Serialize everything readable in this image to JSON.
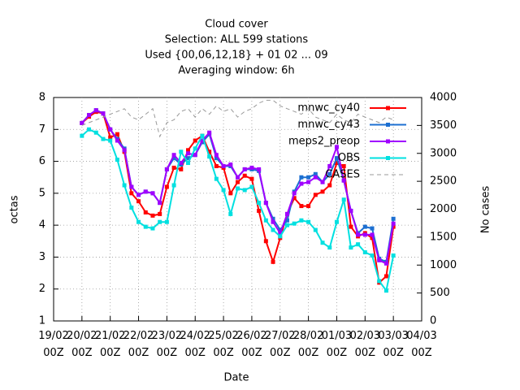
{
  "chart_data": {
    "type": "line",
    "title": [
      "Cloud cover",
      "Selection: ALL    599 stations",
      "Used {00,06,12,18} + 01 02 ... 09",
      "Averaging window:  6h"
    ],
    "xlabel": "Date",
    "ylabel": "octas",
    "y2label": "No cases",
    "xlim": [
      "19/02 00Z",
      "04/03 00Z"
    ],
    "xticks": [
      "19/02 00Z",
      "20/02 00Z",
      "21/02 00Z",
      "22/02 00Z",
      "23/02 00Z",
      "24/02 00Z",
      "25/02 00Z",
      "26/02 00Z",
      "27/02 00Z",
      "28/02 00Z",
      "01/03 00Z",
      "02/03 00Z",
      "03/03 00Z",
      "04/03 00Z"
    ],
    "ylim": [
      1,
      8
    ],
    "yticks": [
      1,
      2,
      3,
      4,
      5,
      6,
      7,
      8
    ],
    "y2lim": [
      0,
      4000
    ],
    "y2ticks": [
      0,
      500,
      1000,
      1500,
      2000,
      2500,
      3000,
      3500,
      4000
    ],
    "grid": true,
    "legend": "top-right",
    "x": [
      "20/02 00Z",
      "20/02 06Z",
      "20/02 12Z",
      "20/02 18Z",
      "21/02 00Z",
      "21/02 06Z",
      "21/02 12Z",
      "21/02 18Z",
      "22/02 00Z",
      "22/02 06Z",
      "22/02 12Z",
      "22/02 18Z",
      "23/02 00Z",
      "23/02 06Z",
      "23/02 12Z",
      "23/02 18Z",
      "24/02 00Z",
      "24/02 06Z",
      "24/02 12Z",
      "24/02 18Z",
      "25/02 00Z",
      "25/02 06Z",
      "25/02 12Z",
      "25/02 18Z",
      "26/02 00Z",
      "26/02 06Z",
      "26/02 12Z",
      "26/02 18Z",
      "27/02 00Z",
      "27/02 06Z",
      "27/02 12Z",
      "27/02 18Z",
      "28/02 00Z",
      "28/02 06Z",
      "28/02 12Z",
      "28/02 18Z",
      "01/03 00Z",
      "01/03 06Z",
      "01/03 12Z",
      "01/03 18Z",
      "02/03 00Z",
      "02/03 06Z",
      "02/03 12Z",
      "02/03 18Z",
      "03/03 00Z"
    ],
    "series": [
      {
        "name": "mnwc_cy40",
        "color": "#ff0000",
        "values": [
          7.2,
          7.4,
          7.55,
          7.5,
          6.75,
          6.85,
          6.3,
          5.0,
          4.75,
          4.4,
          4.3,
          4.35,
          5.2,
          5.8,
          5.75,
          6.35,
          6.65,
          6.8,
          6.3,
          5.85,
          5.8,
          5.0,
          5.35,
          5.55,
          5.45,
          4.45,
          3.5,
          2.85,
          3.6,
          4.35,
          4.85,
          4.6,
          4.6,
          4.95,
          5.05,
          5.25,
          5.95,
          5.85,
          3.95,
          3.65,
          3.75,
          3.6,
          2.2,
          2.4,
          3.95
        ]
      },
      {
        "name": "mnwc_cy43",
        "color": "#1c6fd1",
        "values": [
          7.2,
          7.45,
          7.6,
          7.5,
          7.0,
          6.7,
          6.4,
          5.2,
          4.95,
          5.05,
          5.0,
          4.7,
          5.75,
          6.1,
          5.9,
          6.1,
          6.2,
          6.6,
          6.85,
          6.1,
          5.85,
          5.85,
          5.5,
          5.75,
          5.75,
          5.7,
          4.7,
          4.2,
          3.85,
          4.15,
          5.05,
          5.5,
          5.5,
          5.6,
          5.35,
          5.6,
          6.1,
          5.4,
          4.45,
          3.75,
          3.95,
          3.9,
          2.95,
          2.85,
          4.2
        ]
      },
      {
        "name": "meps2_preop",
        "color": "#a000ff",
        "values": [
          7.2,
          7.45,
          7.6,
          7.5,
          7.0,
          6.65,
          6.35,
          5.2,
          4.95,
          5.05,
          5.0,
          4.7,
          5.75,
          6.2,
          5.95,
          6.25,
          6.2,
          6.65,
          6.9,
          6.2,
          5.85,
          5.9,
          5.5,
          5.75,
          5.8,
          5.75,
          4.7,
          4.1,
          3.75,
          4.35,
          5.0,
          5.3,
          5.35,
          5.5,
          5.35,
          5.85,
          6.45,
          5.4,
          4.45,
          3.7,
          3.7,
          3.7,
          2.9,
          2.8,
          4.05
        ]
      },
      {
        "name": "OBS",
        "color": "#00e0e0",
        "values": [
          6.8,
          7.0,
          6.9,
          6.7,
          6.65,
          6.05,
          5.25,
          4.55,
          4.1,
          3.95,
          3.9,
          4.1,
          4.1,
          5.25,
          6.3,
          5.95,
          6.4,
          6.8,
          6.15,
          5.45,
          5.1,
          4.35,
          5.15,
          5.1,
          5.2,
          4.7,
          4.15,
          3.85,
          3.65,
          4.0,
          4.05,
          4.15,
          4.1,
          3.85,
          3.45,
          3.3,
          4.1,
          4.8,
          3.3,
          3.4,
          3.15,
          3.05,
          2.25,
          1.95,
          3.05
        ]
      },
      {
        "name": "CASES",
        "color": "#999999",
        "axis": "y2",
        "dashed": true,
        "values": [
          3500,
          3550,
          3600,
          3650,
          3700,
          3750,
          3800,
          3650,
          3600,
          3700,
          3800,
          3300,
          3550,
          3600,
          3750,
          3800,
          3650,
          3800,
          3700,
          3850,
          3750,
          3800,
          3650,
          3750,
          3800,
          3900,
          3950,
          3950,
          3850,
          3800,
          3750,
          3700,
          3800,
          3650,
          3600,
          3550,
          3700,
          3600,
          3550,
          3700,
          3650,
          3600,
          3550,
          3650,
          3600
        ]
      }
    ]
  }
}
